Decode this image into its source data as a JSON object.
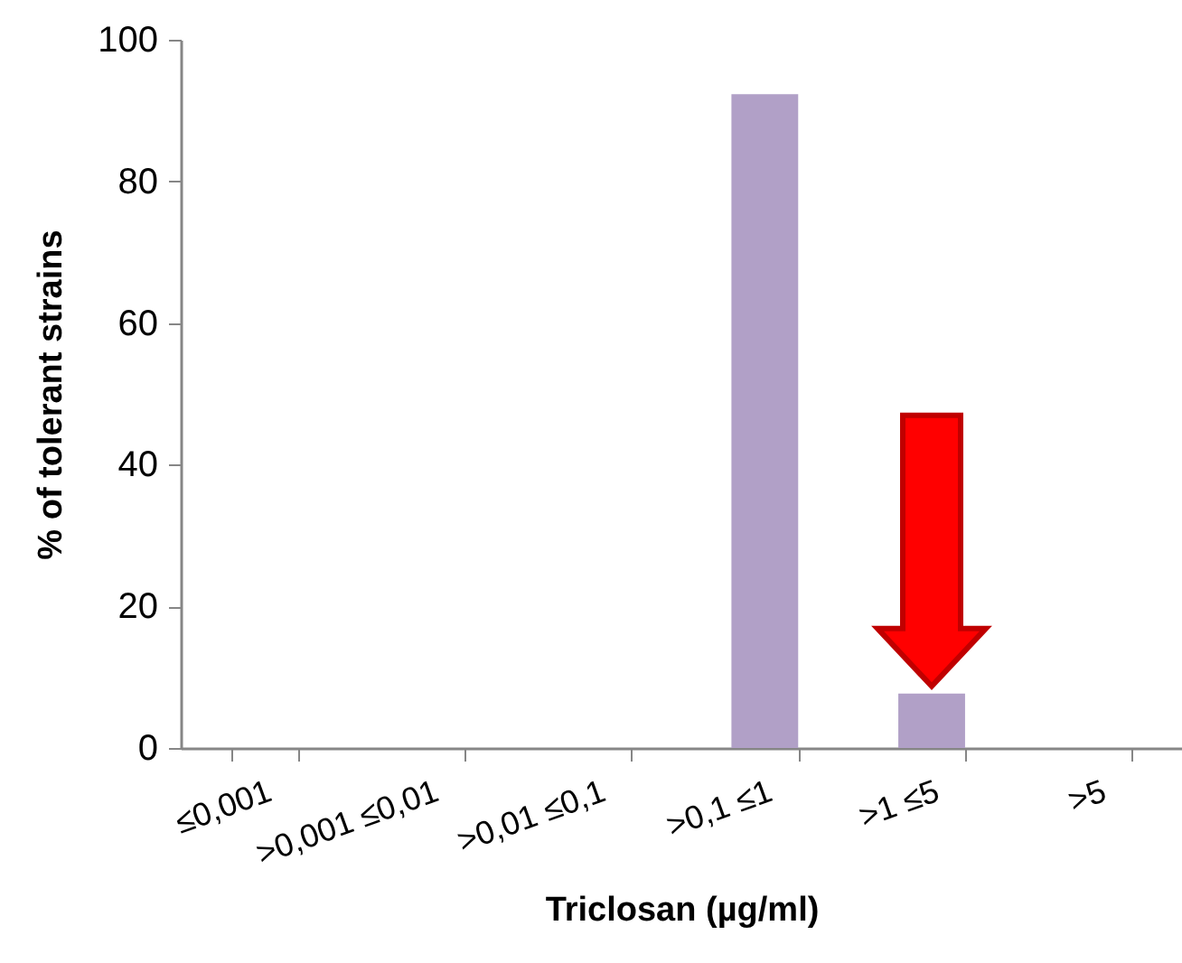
{
  "chart_data": {
    "type": "bar",
    "xlabel": "Triclosan (µg/ml)",
    "ylabel": "% of tolerant strains",
    "categories": [
      "≤0,001",
      ">0,001 ≤0,01",
      ">0,01 ≤0,1",
      ">0,1 ≤1",
      ">1 ≤5",
      ">5"
    ],
    "values": [
      0,
      0,
      0,
      92.3,
      7.7,
      0
    ],
    "color": "#b1a0c7",
    "ylim": [
      0,
      100
    ],
    "yticks": [
      0,
      20,
      40,
      60,
      80,
      100
    ],
    "grid": false
  }
}
